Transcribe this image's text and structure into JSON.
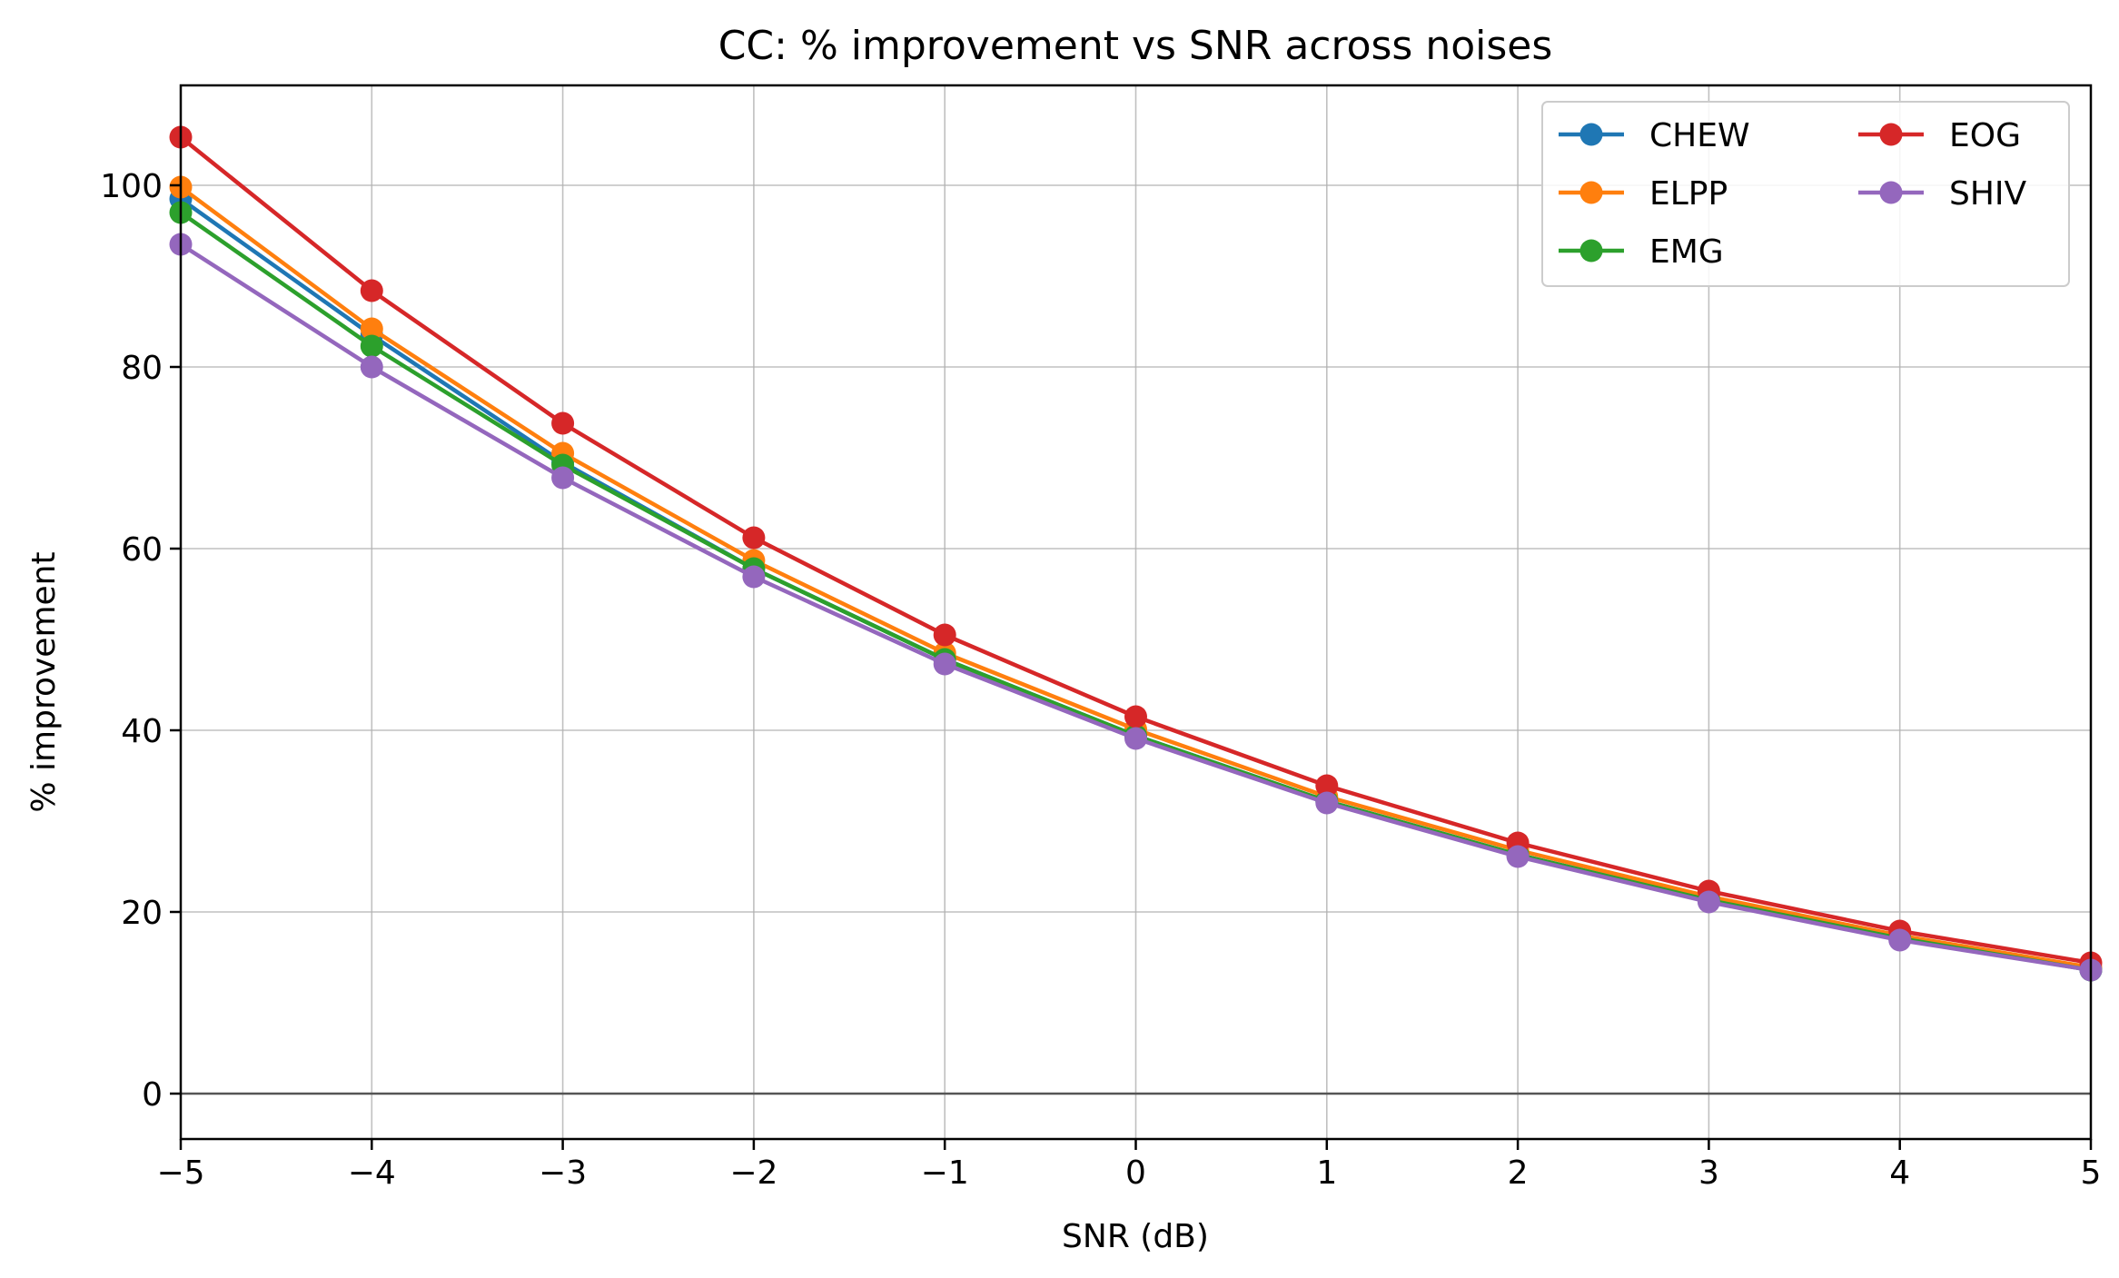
{
  "chart_data": {
    "type": "line",
    "title": "CC: % improvement vs SNR across noises",
    "xlabel": "SNR (dB)",
    "ylabel": "% improvement",
    "x": [
      -5,
      -4,
      -3,
      -2,
      -1,
      0,
      1,
      2,
      3,
      4,
      5
    ],
    "xlim": [
      -5,
      5
    ],
    "ylim": [
      -5,
      111
    ],
    "xticks": [
      -5,
      -4,
      -3,
      -2,
      -1,
      0,
      1,
      2,
      3,
      4,
      5
    ],
    "xtick_labels": [
      "−5",
      "−4",
      "−3",
      "−2",
      "−1",
      "0",
      "1",
      "2",
      "3",
      "4",
      "5"
    ],
    "yticks": [
      0,
      20,
      40,
      60,
      80,
      100
    ],
    "ytick_labels": [
      "0",
      "20",
      "40",
      "60",
      "80",
      "100"
    ],
    "grid": true,
    "reference_line_y": 0,
    "legend_position": "top-right",
    "legend_columns": 2,
    "series": [
      {
        "name": "CHEW",
        "color": "#1f77b4",
        "values": [
          98.5,
          83.5,
          69.5,
          57.8,
          47.8,
          39.4,
          32.2,
          26.3,
          21.3,
          17.1,
          13.6
        ]
      },
      {
        "name": "ELPP",
        "color": "#ff7f0e",
        "values": [
          99.8,
          84.2,
          70.5,
          58.7,
          48.5,
          40.1,
          32.7,
          26.8,
          21.7,
          17.4,
          13.9
        ]
      },
      {
        "name": "EMG",
        "color": "#2ca02c",
        "values": [
          97.0,
          82.3,
          69.2,
          57.8,
          47.8,
          39.4,
          32.2,
          26.3,
          21.3,
          17.1,
          13.6
        ]
      },
      {
        "name": "EOG",
        "color": "#d62728",
        "values": [
          105.3,
          88.4,
          73.8,
          61.2,
          50.5,
          41.5,
          33.9,
          27.6,
          22.3,
          17.9,
          14.4
        ]
      },
      {
        "name": "SHIV",
        "color": "#9467bd",
        "values": [
          93.5,
          80.0,
          67.8,
          56.9,
          47.3,
          39.1,
          32.0,
          26.1,
          21.1,
          16.9,
          13.6
        ]
      }
    ]
  }
}
